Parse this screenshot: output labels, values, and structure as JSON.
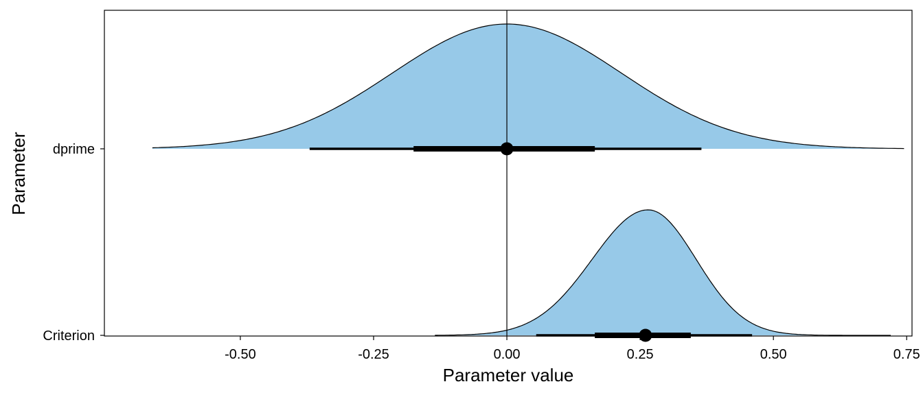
{
  "chart_data": {
    "type": "area",
    "xlabel": "Parameter value",
    "ylabel": "Parameter",
    "xlim": [
      -0.755,
      0.76
    ],
    "x_ticks": [
      -0.5,
      -0.25,
      0.0,
      0.25,
      0.5,
      0.75
    ],
    "x_tick_labels": [
      "-0.50",
      "-0.25",
      "0.00",
      "0.25",
      "0.50",
      "0.75"
    ],
    "categories": [
      "dprime",
      "Criterion"
    ],
    "reference_line_x": 0,
    "fill_color": "#97C9E8",
    "outline_color": "#000000",
    "grid": false,
    "series": [
      {
        "name": "dprime",
        "range": [
          -0.665,
          0.745
        ],
        "peak": 0.0,
        "sd_left": 0.215,
        "sd_right": 0.215,
        "point": 0.0,
        "interval_66": [
          -0.175,
          0.165
        ],
        "interval_95": [
          -0.37,
          0.365
        ]
      },
      {
        "name": "Criterion",
        "range": [
          -0.135,
          0.72
        ],
        "peak": 0.265,
        "sd_left": 0.105,
        "sd_right": 0.09,
        "point": 0.26,
        "interval_66": [
          0.165,
          0.345
        ],
        "interval_95": [
          0.055,
          0.46
        ]
      }
    ]
  }
}
